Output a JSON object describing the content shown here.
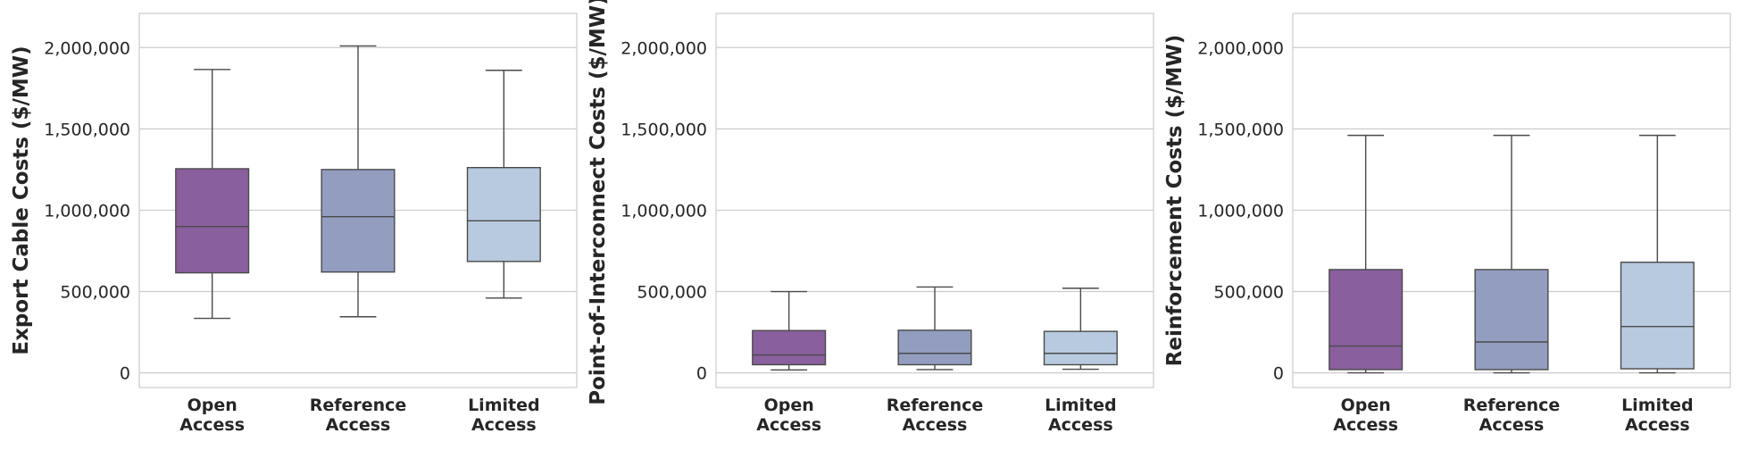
{
  "figure_title": "Box plots of export cable, point-of-interconnect and reinforcement costs by access scenario",
  "colors": {
    "open_access": "#8a5f9e",
    "reference_access": "#929dc0",
    "limited_access": "#b7cadf",
    "grid": "#cccccc",
    "line": "#4a4a4a"
  },
  "chart_data": [
    {
      "type": "box",
      "ylabel": "Export Cable Costs ($/MW)",
      "categories": [
        [
          "Open",
          "Access"
        ],
        [
          "Reference",
          "Access"
        ],
        [
          "Limited",
          "Access"
        ]
      ],
      "ylim": [
        -90000,
        2210000
      ],
      "yticks": [
        0,
        500000,
        1000000,
        1500000,
        2000000
      ],
      "ytick_labels": [
        "0",
        "500,000",
        "1,000,000",
        "1,500,000",
        "2,000,000"
      ],
      "grid": true,
      "boxes": [
        {
          "name": "Open Access",
          "whisker_low": 335000,
          "q1": 615000,
          "median": 900000,
          "q3": 1255000,
          "whisker_high": 1865000
        },
        {
          "name": "Reference Access",
          "whisker_low": 345000,
          "q1": 620000,
          "median": 960000,
          "q3": 1250000,
          "whisker_high": 2010000
        },
        {
          "name": "Limited Access",
          "whisker_low": 460000,
          "q1": 685000,
          "median": 935000,
          "q3": 1262000,
          "whisker_high": 1860000
        }
      ]
    },
    {
      "type": "box",
      "ylabel": "Point-of-Interconnect Costs ($/MW)",
      "categories": [
        [
          "Open",
          "Access"
        ],
        [
          "Reference",
          "Access"
        ],
        [
          "Limited",
          "Access"
        ]
      ],
      "ylim": [
        -90000,
        2210000
      ],
      "yticks": [
        0,
        500000,
        1000000,
        1500000,
        2000000
      ],
      "ytick_labels": [
        "0",
        "500,000",
        "1,000,000",
        "1,500,000",
        "2,000,000"
      ],
      "grid": true,
      "boxes": [
        {
          "name": "Open Access",
          "whisker_low": 18000,
          "q1": 50000,
          "median": 110000,
          "q3": 260000,
          "whisker_high": 500000
        },
        {
          "name": "Reference Access",
          "whisker_low": 20000,
          "q1": 50000,
          "median": 120000,
          "q3": 262000,
          "whisker_high": 528000
        },
        {
          "name": "Limited Access",
          "whisker_low": 22000,
          "q1": 50000,
          "median": 120000,
          "q3": 255000,
          "whisker_high": 520000
        }
      ]
    },
    {
      "type": "box",
      "ylabel": "Reinforcement Costs ($/MW)",
      "categories": [
        [
          "Open",
          "Access"
        ],
        [
          "Reference",
          "Access"
        ],
        [
          "Limited",
          "Access"
        ]
      ],
      "ylim": [
        -90000,
        2210000
      ],
      "yticks": [
        0,
        500000,
        1000000,
        1500000,
        2000000
      ],
      "ytick_labels": [
        "0",
        "500,000",
        "1,000,000",
        "1,500,000",
        "2,000,000"
      ],
      "grid": true,
      "boxes": [
        {
          "name": "Open Access",
          "whisker_low": 0,
          "q1": 20000,
          "median": 165000,
          "q3": 635000,
          "whisker_high": 1460000
        },
        {
          "name": "Reference Access",
          "whisker_low": 0,
          "q1": 20000,
          "median": 190000,
          "q3": 635000,
          "whisker_high": 1460000
        },
        {
          "name": "Limited Access",
          "whisker_low": 0,
          "q1": 25000,
          "median": 285000,
          "q3": 680000,
          "whisker_high": 1460000
        }
      ]
    }
  ]
}
